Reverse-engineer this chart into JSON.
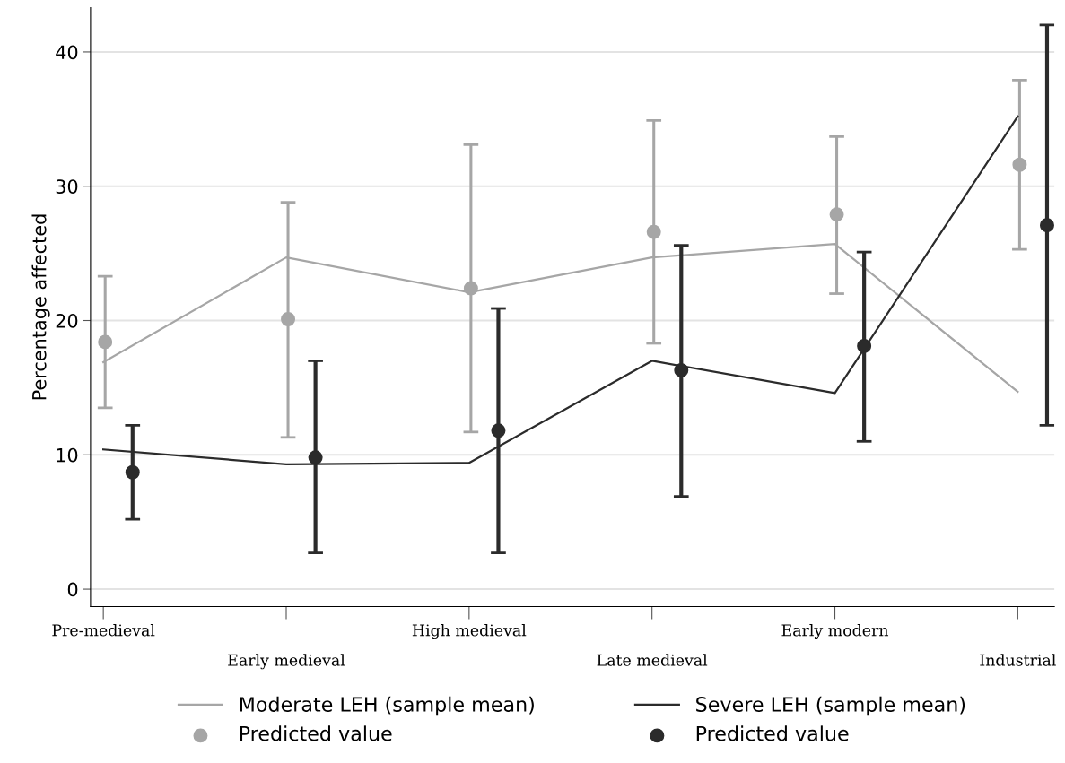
{
  "chart_data": {
    "type": "line",
    "ylabel": "Percentage affected",
    "categories": [
      "Pre-medieval",
      "Early medieval",
      "High medieval",
      "Late medieval",
      "Early modern",
      "Industrial"
    ],
    "ylim": [
      -1.3,
      43.3
    ],
    "yticks": [
      0,
      10,
      20,
      30,
      40
    ],
    "grid": "y",
    "legend": "bottom",
    "marker": "none",
    "line_style": "solid",
    "series": [
      {
        "name": "Moderate LEH (sample mean)",
        "color": "#a6a6a6",
        "values": [
          16.9,
          24.7,
          22.1,
          24.7,
          25.7,
          14.7
        ]
      },
      {
        "type": "scatter",
        "name": "Predicted value",
        "color": "#a6a6a6",
        "marker": "circle",
        "x": [
          "Pre-medieval",
          "Early medieval",
          "High medieval",
          "Late medieval",
          "Early modern",
          "Industrial"
        ],
        "values": [
          18.4,
          20.1,
          22.4,
          26.6,
          27.9,
          31.6
        ],
        "errors": [
          [
            13.5,
            23.3
          ],
          [
            11.3,
            28.8
          ],
          [
            11.7,
            33.1
          ],
          [
            18.3,
            34.9
          ],
          [
            22.0,
            33.7
          ],
          [
            25.3,
            37.9
          ]
        ]
      },
      {
        "name": "Severe LEH (sample mean)",
        "color": "#2b2b2b",
        "values": [
          10.4,
          9.3,
          9.4,
          17.0,
          14.6,
          35.2
        ]
      },
      {
        "type": "scatter",
        "name": "Predicted value",
        "color": "#2b2b2b",
        "marker": "circle",
        "x": [
          "Pre-medieval",
          "Early medieval",
          "High medieval",
          "Late medieval",
          "Early modern",
          "Industrial"
        ],
        "values": [
          8.7,
          9.8,
          11.8,
          16.3,
          18.1,
          27.1
        ],
        "errors": [
          [
            5.2,
            12.2
          ],
          [
            2.7,
            17.0
          ],
          [
            2.7,
            20.9
          ],
          [
            6.9,
            25.6
          ],
          [
            11.0,
            25.1
          ],
          [
            12.2,
            42.0
          ]
        ]
      }
    ]
  }
}
